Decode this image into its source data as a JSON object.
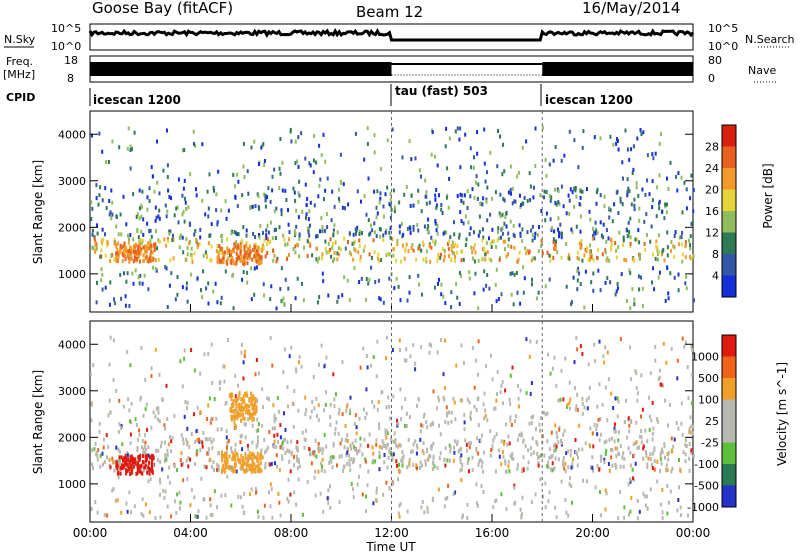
{
  "header": {
    "station": "Goose Bay (fitACF)",
    "beam": "Beam 12",
    "date": "16/May/2014"
  },
  "top_panels": {
    "nsky_label": "N.Sky",
    "nsky_ticks": [
      "10^5",
      "10^0"
    ],
    "nsearch_label": "N.Search",
    "nsearch_ticks": [
      "10^5",
      "10^0"
    ],
    "freq_label": "Freq.",
    "freq_unit": "[MHz]",
    "freq_ticks": [
      "18",
      "8"
    ],
    "nave_label": "Nave",
    "nave_ticks": [
      "80",
      "0"
    ],
    "cpid_label": "CPID",
    "cpid_segments": [
      {
        "label": "icescan 1200",
        "start": 0,
        "end": 12
      },
      {
        "label": "tau (fast) 503",
        "start": 12,
        "end": 18
      },
      {
        "label": "icescan 1200",
        "start": 18,
        "end": 24
      }
    ]
  },
  "chart_data": [
    {
      "type": "heatmap",
      "name": "power",
      "ylabel": "Slant Range [km]",
      "yticks": [
        "1000",
        "2000",
        "3000",
        "4000"
      ],
      "ylim": [
        180,
        4500
      ],
      "xlim": [
        0,
        24
      ],
      "colorbar_label": "Power [dB]",
      "colorbar_ticks": [
        "4",
        "8",
        "12",
        "16",
        "20",
        "24",
        "28"
      ],
      "colors": [
        "#1530d8",
        "#3456a8",
        "#2e7a55",
        "#8fbd5e",
        "#e6d43a",
        "#f29a2a",
        "#e8601e",
        "#d81f10"
      ]
    },
    {
      "type": "heatmap",
      "name": "velocity",
      "ylabel": "Slant Range [km]",
      "yticks": [
        "1000",
        "2000",
        "3000",
        "4000"
      ],
      "ylim": [
        180,
        4500
      ],
      "xlim": [
        0,
        24
      ],
      "colorbar_label": "Velocity [m s^-1]",
      "colorbar_ticks": [
        "1000",
        "500",
        "100",
        "25",
        "-25",
        "-100",
        "-500",
        "-1000"
      ],
      "colors": [
        "#2433c9",
        "#2a7a54",
        "#5fbf3a",
        "#b8b8b0",
        "#b8b8b0",
        "#f0a028",
        "#ee6418",
        "#e01a10"
      ]
    }
  ],
  "x_axis": {
    "ticks": [
      "00:00",
      "04:00",
      "08:00",
      "12:00",
      "16:00",
      "20:00",
      "00:00"
    ],
    "label": "Time UT"
  }
}
